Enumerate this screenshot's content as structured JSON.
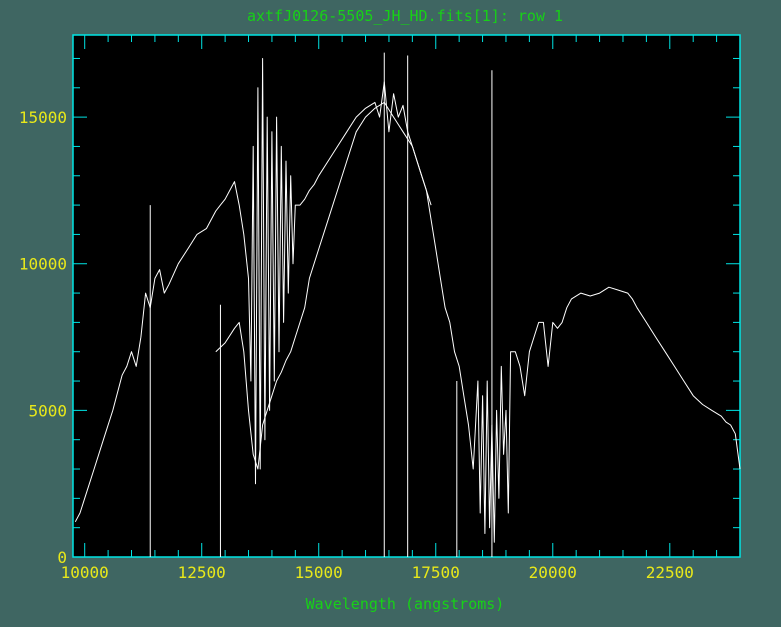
{
  "window": {
    "title": "axtfJ0126-5505_JH_HD.fits[1]: row 1"
  },
  "colors": {
    "background": "#3f6662",
    "plot_background": "#000000",
    "frame": "#00e5e5",
    "title": "#17d117",
    "xlabel": "#17d117",
    "tick_labels": "#e8e81a",
    "data_line": "#ffffff"
  },
  "chart_data": {
    "type": "line",
    "title": "axtfJ0126-5505_JH_HD.fits[1]: row 1",
    "xlabel": "Wavelength (angstroms)",
    "ylabel": "",
    "xlim": [
      9750,
      24000
    ],
    "ylim": [
      0,
      17800
    ],
    "x_ticks": [
      10000,
      12500,
      15000,
      17500,
      20000,
      22500
    ],
    "x_tick_labels": [
      "10000",
      "12500",
      "15000",
      "17500",
      "20000",
      "22500"
    ],
    "y_ticks": [
      0,
      5000,
      10000,
      15000
    ],
    "y_tick_labels": [
      "0",
      "5000",
      "10000",
      "15000"
    ],
    "grid": false,
    "legend": "none",
    "series": [
      {
        "x": [
          9800,
          9900,
          10000,
          10200,
          10400,
          10600,
          10800,
          10900,
          11000,
          11100,
          11200,
          11300,
          11400,
          11500,
          11600,
          11700,
          11800,
          12000,
          12200,
          12400,
          12600,
          12800,
          12900,
          13000,
          13100,
          13200,
          13300,
          13400,
          13500,
          13550,
          13600,
          13650,
          13700,
          13750,
          13800,
          13850,
          13900,
          13950,
          14000,
          14050,
          14100,
          14150,
          14200,
          14250,
          14300,
          14350,
          14400,
          14450,
          14500,
          14600,
          14700,
          14800,
          14900,
          15000,
          15200,
          15400,
          15600,
          15800,
          16000,
          16200,
          16300,
          16400,
          16500,
          16600,
          16700,
          16800,
          16900,
          17000,
          17100,
          17200,
          17300,
          17400,
          17500,
          17600,
          17700,
          17800,
          17900,
          18000,
          18100,
          18200,
          18300,
          18400,
          18450,
          18500,
          18550,
          18600,
          18650,
          18700,
          18750,
          18800,
          18850,
          18900,
          18950,
          19000,
          19050,
          19100,
          19200,
          19300,
          19400,
          19500,
          19600,
          19700,
          19800,
          19900,
          20000,
          20100,
          20200,
          20300,
          20400,
          20600,
          20800,
          21000,
          21200,
          21400,
          21600,
          21700,
          21800,
          22000,
          22200,
          22400,
          22600,
          22800,
          23000,
          23200,
          23400,
          23600,
          23700,
          23800,
          23900,
          24000
        ],
        "y": [
          1200,
          1500,
          2000,
          3000,
          4000,
          5000,
          6200,
          6500,
          7000,
          6500,
          7500,
          9000,
          8500,
          9500,
          9800,
          9000,
          9300,
          10000,
          10500,
          11000,
          11200,
          11800,
          12000,
          12200,
          12500,
          12800,
          12000,
          11000,
          9500,
          6000,
          14000,
          2500,
          16000,
          3000,
          17000,
          4000,
          15000,
          5000,
          14500,
          6000,
          15000,
          7000,
          14000,
          8000,
          13500,
          9000,
          13000,
          10000,
          12000,
          12000,
          12200,
          12500,
          12700,
          13000,
          13500,
          14000,
          14500,
          15000,
          15300,
          15500,
          15000,
          16200,
          14500,
          15800,
          15000,
          15400,
          14500,
          14000,
          13500,
          13000,
          12500,
          11500,
          10500,
          9500,
          8500,
          8000,
          7000,
          6500,
          5500,
          4500,
          3000,
          6000,
          1500,
          5500,
          800,
          6000,
          1000,
          4500,
          500,
          5000,
          2000,
          6500,
          3500,
          5000,
          1500,
          7000,
          7000,
          6500,
          5500,
          7000,
          7500,
          8000,
          8000,
          6500,
          8000,
          7800,
          8000,
          8500,
          8800,
          9000,
          8900,
          9000,
          9200,
          9100,
          9000,
          8800,
          8500,
          8000,
          7500,
          7000,
          6500,
          6000,
          5500,
          5200,
          5000,
          4800,
          4600,
          4500,
          4200,
          3000
        ]
      },
      {
        "x": [
          12800,
          13000,
          13200,
          13300,
          13400,
          13500,
          13600,
          13700,
          13800,
          13900,
          14000,
          14100,
          14200,
          14300,
          14400,
          14500,
          14600,
          14700,
          14800,
          15000,
          15200,
          15400,
          15600,
          15800,
          16000,
          16200,
          16400,
          16600,
          16800,
          17000,
          17200,
          17400
        ],
        "y": [
          7000,
          7300,
          7800,
          8000,
          7000,
          5000,
          3500,
          3000,
          4500,
          5000,
          5500,
          6000,
          6300,
          6700,
          7000,
          7500,
          8000,
          8500,
          9500,
          10500,
          11500,
          12500,
          13500,
          14500,
          15000,
          15300,
          15500,
          15000,
          14500,
          14000,
          13000,
          12000
        ]
      }
    ],
    "spikes": [
      {
        "x": 11400,
        "y": 12000
      },
      {
        "x": 12900,
        "y": 8600
      },
      {
        "x": 16400,
        "y": 17200
      },
      {
        "x": 16900,
        "y": 17100
      },
      {
        "x": 17950,
        "y": 6000
      },
      {
        "x": 18700,
        "y": 16600
      }
    ]
  }
}
